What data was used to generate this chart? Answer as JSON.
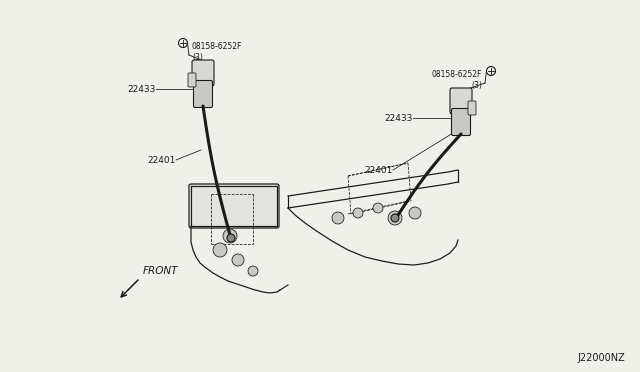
{
  "bg_color": "#f0f0eb",
  "diagram_code": "J22000NZ",
  "bolt_label_left": "08158-6252F\n(3)",
  "bolt_label_right": "08158-6252F\n(3)",
  "coil_label": "22433",
  "plug_label": "22401",
  "front_label": "FRONT"
}
